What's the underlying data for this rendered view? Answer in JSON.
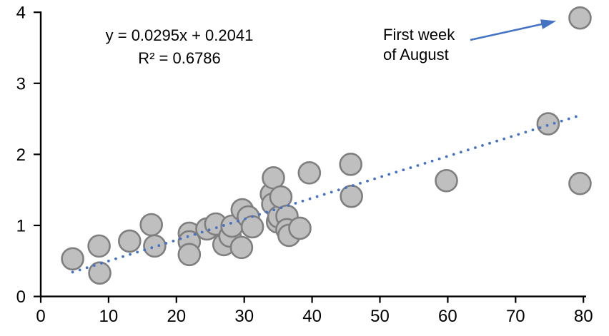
{
  "chart_data": {
    "type": "scatter",
    "title": "",
    "xlabel": "",
    "ylabel": "",
    "x_axis": {
      "min": 0,
      "max": 80,
      "ticks": [
        0,
        10,
        20,
        30,
        40,
        50,
        60,
        70,
        80
      ]
    },
    "y_axis": {
      "min": 0,
      "max": 4,
      "ticks": [
        0,
        1,
        2,
        3,
        4
      ]
    },
    "grid": "off",
    "legend": "none",
    "points": [
      [
        4.7,
        0.53
      ],
      [
        8.6,
        0.71
      ],
      [
        8.7,
        0.33
      ],
      [
        13.1,
        0.78
      ],
      [
        16.3,
        1.01
      ],
      [
        16.8,
        0.71
      ],
      [
        21.9,
        0.89
      ],
      [
        21.9,
        0.77
      ],
      [
        21.9,
        0.59
      ],
      [
        24.5,
        0.95
      ],
      [
        25.8,
        1.02
      ],
      [
        27.0,
        0.73
      ],
      [
        27.9,
        0.85
      ],
      [
        28.2,
        0.99
      ],
      [
        29.6,
        0.69
      ],
      [
        29.7,
        1.22
      ],
      [
        30.6,
        1.12
      ],
      [
        31.2,
        0.98
      ],
      [
        34.0,
        1.44
      ],
      [
        34.2,
        1.3
      ],
      [
        34.3,
        1.67
      ],
      [
        34.9,
        1.05
      ],
      [
        35.1,
        1.12
      ],
      [
        35.4,
        1.4
      ],
      [
        36.3,
        1.13
      ],
      [
        36.3,
        0.94
      ],
      [
        36.6,
        0.86
      ],
      [
        38.2,
        0.96
      ],
      [
        39.6,
        1.74
      ],
      [
        45.7,
        1.86
      ],
      [
        45.8,
        1.41
      ],
      [
        59.8,
        1.63
      ],
      [
        74.8,
        2.43
      ],
      [
        79.5,
        3.92
      ],
      [
        79.5,
        1.59
      ]
    ],
    "trendline": {
      "style": "dotted",
      "slope": 0.0295,
      "intercept": 0.2041,
      "equation": "y = 0.0295x + 0.2041",
      "r_squared": "R² = 0.6786",
      "x_start": 4.7,
      "x_end": 78.9
    },
    "annotation": {
      "line1": "First week",
      "line2": "of August",
      "target_point": [
        79.5,
        3.92
      ]
    },
    "colors": {
      "point_fill": "#bfbfbf",
      "point_stroke": "#7f7f7f",
      "trend": "#4472c4",
      "arrow": "#4472c4",
      "axis": "#000000",
      "text": "#000000",
      "background": "#ffffff"
    }
  }
}
